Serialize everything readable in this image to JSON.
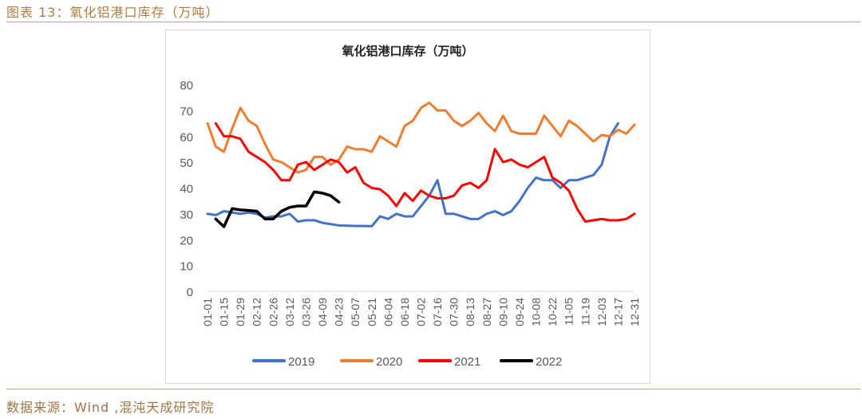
{
  "figure": {
    "caption": "图表 13：氧化铝港口库存（万吨）",
    "source": "数据来源：Wind ,混沌天成研究院"
  },
  "colors": {
    "s2019": "#4472c4",
    "s2020": "#ed7d31",
    "s2021": "#ff0000",
    "s2022": "#000000",
    "accent": "#c9a46f"
  },
  "chart_data": {
    "type": "line",
    "title": "氧化铝港口库存（万吨）",
    "xlabel": "",
    "ylabel": "",
    "ylim": [
      0,
      80
    ],
    "yticks": [
      0,
      10,
      20,
      30,
      40,
      50,
      60,
      70,
      80
    ],
    "grid": false,
    "legend_position": "bottom",
    "x_tick_labels": [
      "01-01",
      "01-15",
      "01-29",
      "02-12",
      "02-26",
      "03-12",
      "03-26",
      "04-09",
      "04-23",
      "05-07",
      "05-21",
      "06-04",
      "06-18",
      "07-02",
      "07-16",
      "07-30",
      "08-13",
      "08-27",
      "09-10",
      "09-24",
      "10-08",
      "10-22",
      "11-05",
      "11-19",
      "12-03",
      "12-17",
      "12-31"
    ],
    "weeks": 53,
    "series": [
      {
        "name": "2019",
        "start_week": 0,
        "values": [
          30,
          29.5,
          31,
          30.5,
          30,
          30.5,
          30,
          28.5,
          29,
          29,
          30,
          27,
          27.5,
          27.5,
          26.5,
          26,
          25.5,
          25.4,
          25.3,
          25.3,
          25.2,
          29,
          28,
          30,
          29,
          29,
          33,
          37,
          43,
          30,
          30,
          29,
          28,
          28,
          30,
          31,
          29.5,
          31,
          35,
          40,
          44,
          43,
          43,
          40,
          43,
          43,
          44,
          45,
          49,
          60,
          65
        ]
      },
      {
        "name": "2020",
        "start_week": 0,
        "values": [
          65,
          56,
          54,
          63,
          71,
          66,
          64,
          57,
          51,
          50,
          48,
          46,
          47,
          52,
          52,
          49,
          51,
          56,
          55,
          55,
          54,
          60,
          58,
          56,
          64,
          66,
          71,
          73,
          70,
          70,
          66,
          64,
          66,
          69,
          65,
          62,
          68,
          62,
          61,
          61,
          61,
          68,
          64,
          60,
          66,
          64,
          61,
          58,
          60.5,
          60,
          62.5,
          61,
          64.5
        ]
      },
      {
        "name": "2021",
        "start_week": 1,
        "values": [
          65,
          60,
          60,
          59,
          54,
          52,
          50,
          47,
          43,
          43,
          49,
          50,
          47,
          49,
          51,
          50,
          46,
          48,
          42,
          40,
          39.5,
          37,
          33,
          38,
          35,
          39,
          37,
          36,
          36,
          37,
          41,
          42,
          40,
          43,
          55,
          50,
          51,
          49,
          48,
          50,
          52,
          44,
          42,
          39,
          32,
          27,
          27.5,
          28,
          27.5,
          27.5,
          28,
          30
        ]
      },
      {
        "name": "2022",
        "start_week": 1,
        "values": [
          28,
          25,
          32,
          31.5,
          31.3,
          31,
          28,
          28,
          31,
          32.5,
          33,
          33,
          38.5,
          38,
          37,
          34.5
        ]
      }
    ]
  }
}
